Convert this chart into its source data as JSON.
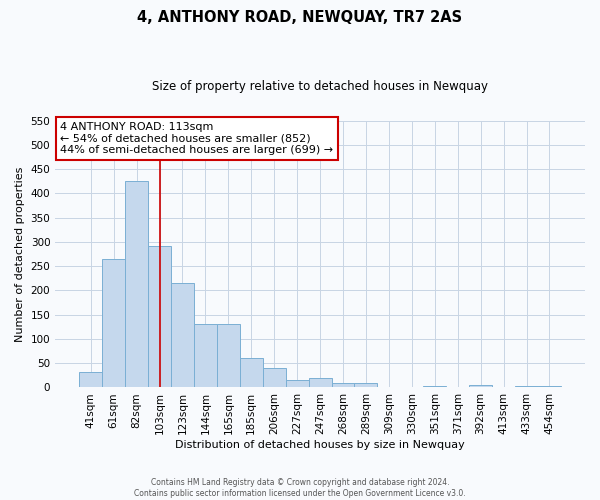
{
  "title": "4, ANTHONY ROAD, NEWQUAY, TR7 2AS",
  "subtitle": "Size of property relative to detached houses in Newquay",
  "xlabel": "Distribution of detached houses by size in Newquay",
  "ylabel": "Number of detached properties",
  "bar_labels": [
    "41sqm",
    "61sqm",
    "82sqm",
    "103sqm",
    "123sqm",
    "144sqm",
    "165sqm",
    "185sqm",
    "206sqm",
    "227sqm",
    "247sqm",
    "268sqm",
    "289sqm",
    "309sqm",
    "330sqm",
    "351sqm",
    "371sqm",
    "392sqm",
    "413sqm",
    "433sqm",
    "454sqm"
  ],
  "bar_values": [
    32,
    265,
    425,
    292,
    215,
    130,
    130,
    60,
    40,
    15,
    20,
    10,
    10,
    0,
    0,
    3,
    0,
    5,
    0,
    3,
    3
  ],
  "bar_color": "#c5d8ed",
  "bar_edge_color": "#7aafd4",
  "vline_x_index": 3,
  "vline_color": "#cc0000",
  "annotation_title": "4 ANTHONY ROAD: 113sqm",
  "annotation_line1": "← 54% of detached houses are smaller (852)",
  "annotation_line2": "44% of semi-detached houses are larger (699) →",
  "annotation_box_color": "#ffffff",
  "annotation_box_edge_color": "#cc0000",
  "ylim": [
    0,
    550
  ],
  "yticks": [
    0,
    50,
    100,
    150,
    200,
    250,
    300,
    350,
    400,
    450,
    500,
    550
  ],
  "footer1": "Contains HM Land Registry data © Crown copyright and database right 2024.",
  "footer2": "Contains public sector information licensed under the Open Government Licence v3.0.",
  "bg_color": "#f8fafd",
  "grid_color": "#c8d4e4"
}
